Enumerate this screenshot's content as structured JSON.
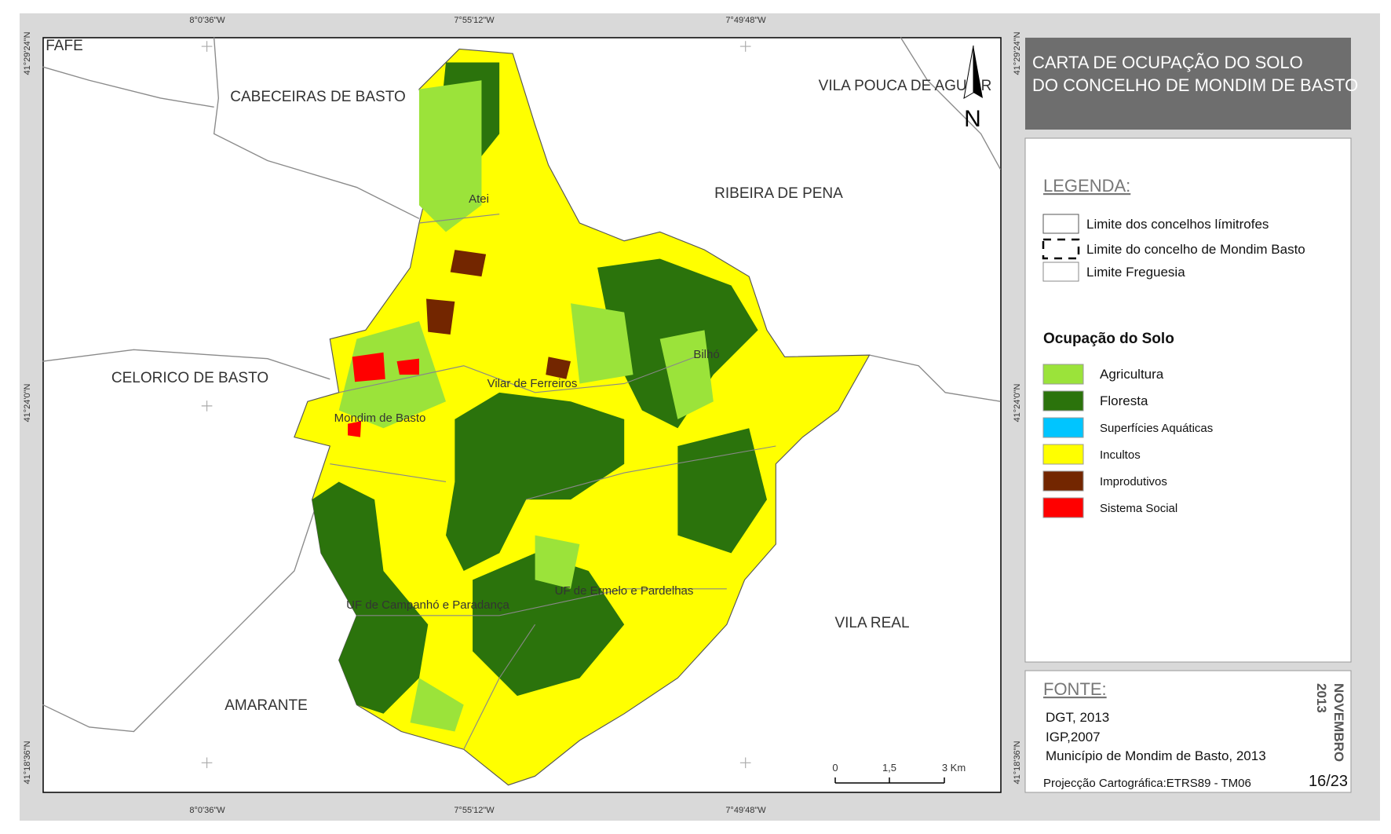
{
  "map_title": [
    "CARTA DE OCUPAÇÃO DO SOLO",
    "DO CONCELHO DE MONDIM DE BASTO"
  ],
  "coordinates": {
    "top": [
      "8°0'36\"W",
      "7°55'12\"W",
      "7°49'48\"W"
    ],
    "bottom": [
      "8°0'36\"W",
      "7°55'12\"W",
      "7°49'48\"W"
    ],
    "left": [
      "41°29'24\"N",
      "41°24'0\"N",
      "41°18'36\"N"
    ],
    "right": [
      "41°29'24\"N",
      "41°24'0\"N",
      "41°18'36\"N"
    ]
  },
  "places": [
    "FAFE",
    "CABECEIRAS DE BASTO",
    "VILA POUCA DE AGUIAR",
    "RIBEIRA DE PENA",
    "CELORICO DE BASTO",
    "VILA REAL",
    "AMARANTE"
  ],
  "parishes": [
    "Atei",
    "Vilar de Ferreiros",
    "Bilhó",
    "Mondim de Basto",
    "UF de Campanhó e Paradança",
    "UF de Ermelo e Pardelhas"
  ],
  "north": "N",
  "scale_bar": [
    "0",
    "1,5",
    "3 Km"
  ],
  "legend": {
    "title": "LEGENDA:",
    "boundaries": [
      "Limite dos concelhos límitrofes",
      "Limite do concelho de Mondim Basto",
      "Limite Freguesia"
    ],
    "land_use_title": "Ocupação do Solo",
    "land_use": [
      {
        "label": "Agricultura",
        "color": "#9be33a"
      },
      {
        "label": "Floresta",
        "color": "#2b730c"
      },
      {
        "label": "Superfícies Aquáticas",
        "color": "#00c5ff"
      },
      {
        "label": "Incultos",
        "color": "#ffff00"
      },
      {
        "label": "Improdutivos",
        "color": "#732600"
      },
      {
        "label": "Sistema Social",
        "color": "#ff0000"
      }
    ]
  },
  "source": {
    "title": "FONTE:",
    "lines": [
      "DGT, 2013",
      "IGP,2007",
      "Município de Mondim de Basto, 2013"
    ],
    "projection": "Projecção Cartográfica:ETRS89 - TM06"
  },
  "date": [
    "NOVEMBRO",
    "2013"
  ],
  "page": "16/23"
}
